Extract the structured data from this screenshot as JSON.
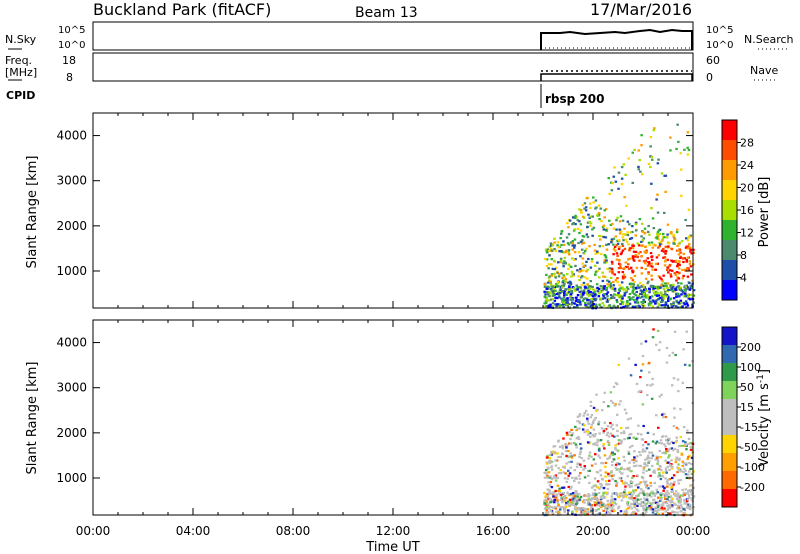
{
  "header": {
    "station": "Buckland Park (fitACF)",
    "beam": "Beam 13",
    "date": "17/Mar/2016"
  },
  "summary_panels": {
    "nsky_label": "N.Sky",
    "nsky_ticks": [
      "10^5",
      "10^0"
    ],
    "nsearch_label": "N.Search",
    "nsearch_ticks": [
      "10^5",
      "10^0"
    ],
    "freq_label_1": "Freq.",
    "freq_label_2": "[MHz]",
    "freq_ticks": [
      "18",
      "8"
    ],
    "nave_label": "Nave",
    "nave_ticks": [
      "60",
      "0"
    ],
    "cpid_label": "CPID",
    "cpid_value": "rbsp 200"
  },
  "chart_data": [
    {
      "type": "heatmap",
      "name": "power",
      "ylabel": "Slant Range [km]",
      "yticks": [
        "1000",
        "2000",
        "3000",
        "4000"
      ],
      "ylim": [
        180,
        4500
      ],
      "xlim_hours": [
        0,
        24
      ],
      "colorbar_label": "Power [dB]",
      "colorbar_ticks": [
        "28",
        "24",
        "20",
        "16",
        "12",
        "8",
        "4"
      ],
      "colorbar_colors": [
        "#ff0000",
        "#ff4d00",
        "#ff9a00",
        "#ffd400",
        "#a8de00",
        "#2fb32f",
        "#4c8a6e",
        "#1d4fa8",
        "#0000ff"
      ],
      "data_start_hours": 18.0
    },
    {
      "type": "heatmap",
      "name": "velocity",
      "ylabel": "Slant Range [km]",
      "yticks": [
        "1000",
        "2000",
        "3000",
        "4000"
      ],
      "ylim": [
        180,
        4500
      ],
      "xlim_hours": [
        0,
        24
      ],
      "colorbar_label": "Velocity [m s^-1]",
      "colorbar_ticks": [
        "200",
        "100",
        "50",
        "15",
        "-15",
        "-50",
        "-100",
        "-200"
      ],
      "colorbar_colors": [
        "#1414c8",
        "#2f6ab0",
        "#2f9a4a",
        "#7fd35a",
        "#bebebe",
        "#bebebe",
        "#ffd400",
        "#ffa000",
        "#ff6a00",
        "#ff0000"
      ],
      "data_start_hours": 18.0
    }
  ],
  "time_axis": {
    "ticks": [
      "00:00",
      "04:00",
      "08:00",
      "12:00",
      "16:00",
      "20:00",
      "00:00"
    ],
    "xlabel": "Time UT"
  }
}
